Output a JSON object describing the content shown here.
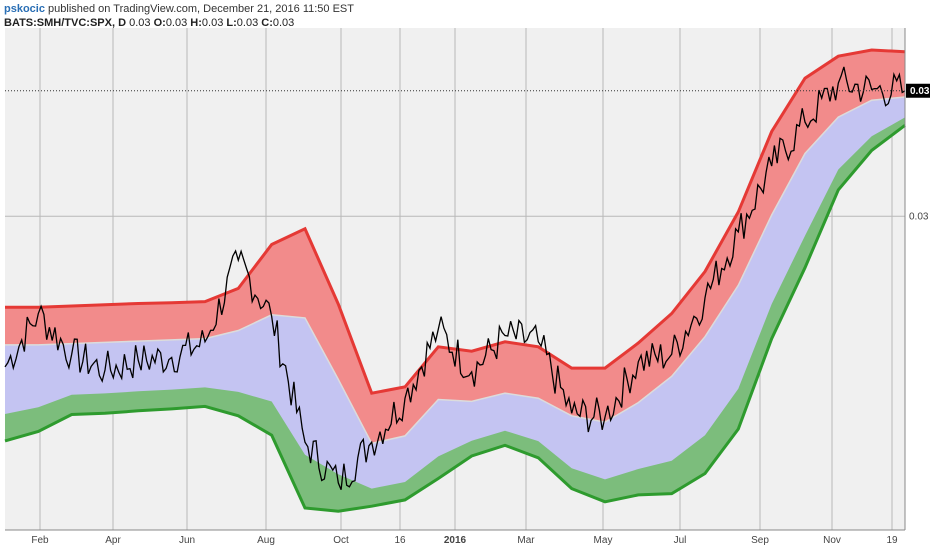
{
  "header": {
    "author": "pskocic",
    "published": "published on TradingView.com, December 21, 2016 11:50 EST",
    "symbol": "BATS:SMH/TVC:SPX, D",
    "ohlc_label_o": "O:",
    "ohlc_label_h": "H:",
    "ohlc_label_l": "L:",
    "ohlc_label_c": "C:",
    "last": "0.03",
    "open": "0.03",
    "high": "0.03",
    "low": "0.03",
    "close": "0.03"
  },
  "colors": {
    "upper_band": "#e53935",
    "upper_fill": "#f28b8b",
    "mid_fill": "#c4c4f2",
    "lower_band": "#2e9b2e",
    "lower_fill": "#7cbd7c",
    "basis": "#dcdcdc",
    "price": "#000000",
    "background": "#f0f0f0"
  },
  "chart_data": {
    "type": "line",
    "x_ticks": [
      "Feb",
      "Apr",
      "Jun",
      "Aug",
      "Oct",
      "16",
      "2016",
      "Mar",
      "May",
      "Jul",
      "Sep",
      "Nov",
      "19"
    ],
    "y_ticks": [
      "0.03"
    ],
    "last_value_label": "0.03",
    "ylim": [
      0.025,
      0.033
    ],
    "series": [
      {
        "name": "",
        "role": "upper",
        "values": [
          0.02855,
          0.02855,
          0.02857,
          0.02859,
          0.02861,
          0.02862,
          0.02864,
          0.02885,
          0.02955,
          0.0298,
          0.0286,
          0.02718,
          0.02728,
          0.02792,
          0.02785,
          0.028,
          0.02792,
          0.02758,
          0.02758,
          0.02798,
          0.02845,
          0.02912,
          0.03007,
          0.03135,
          0.0322,
          0.03255,
          0.03265,
          0.03262
        ]
      },
      {
        "name": "",
        "role": "basis",
        "values": [
          0.02795,
          0.02795,
          0.02797,
          0.02799,
          0.02801,
          0.02803,
          0.02805,
          0.02818,
          0.02843,
          0.02838,
          0.0274,
          0.02638,
          0.0265,
          0.02708,
          0.02705,
          0.02718,
          0.0271,
          0.02682,
          0.02672,
          0.02703,
          0.02745,
          0.02808,
          0.0289,
          0.03002,
          0.031,
          0.03158,
          0.03185,
          0.0319
        ]
      },
      {
        "name": "",
        "role": "lower",
        "values": [
          0.02642,
          0.02657,
          0.02684,
          0.02686,
          0.0269,
          0.02693,
          0.02697,
          0.02682,
          0.02651,
          0.02535,
          0.0253,
          0.02538,
          0.02548,
          0.02582,
          0.02618,
          0.02635,
          0.02615,
          0.02566,
          0.02545,
          0.02556,
          0.02558,
          0.0259,
          0.02661,
          0.02805,
          0.02918,
          0.03042,
          0.03105,
          0.03145
        ]
      },
      {
        "name": "",
        "role": "price",
        "values": [
          0.0276,
          0.02845,
          0.0278,
          0.02755,
          0.0277,
          0.02775,
          0.028,
          0.0293,
          0.0284,
          0.0264,
          0.02575,
          0.0264,
          0.0271,
          0.0282,
          0.02752,
          0.0281,
          0.028,
          0.02686,
          0.0268,
          0.02768,
          0.0278,
          0.0287,
          0.02975,
          0.0308,
          0.0315,
          0.03212,
          0.03202,
          0.032
        ]
      }
    ],
    "grid": true,
    "legend": "none"
  }
}
